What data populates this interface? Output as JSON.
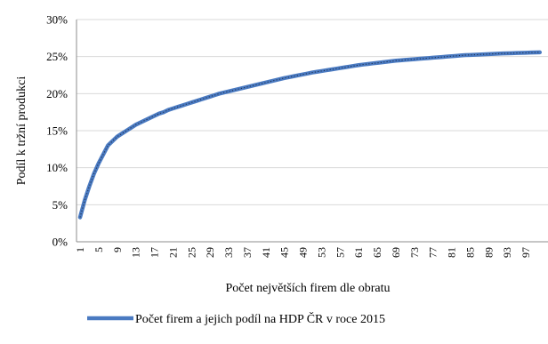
{
  "chart_data": {
    "type": "line",
    "title": "",
    "xlabel": "Počet největších firem dle obratu",
    "ylabel": "Podíl k tržní produkci",
    "ylim": [
      0,
      30
    ],
    "yticks": [
      "0%",
      "5%",
      "10%",
      "15%",
      "20%",
      "25%",
      "30%"
    ],
    "yticks_values": [
      0,
      5,
      10,
      15,
      20,
      25,
      30
    ],
    "xlim": [
      1,
      100
    ],
    "xtick_labels": [
      "1",
      "5",
      "9",
      "13",
      "17",
      "21",
      "25",
      "29",
      "33",
      "37",
      "41",
      "45",
      "49",
      "53",
      "57",
      "61",
      "65",
      "69",
      "73",
      "77",
      "81",
      "85",
      "89",
      "93",
      "97"
    ],
    "grid": "horizontal",
    "legend_position": "bottom",
    "color": "#4a7ac1",
    "series": [
      {
        "name": "Počet firem a jejich podíl na HDP ČR v roce 2015",
        "x": [
          1,
          2,
          3,
          4,
          5,
          6,
          7,
          8,
          9,
          10,
          11,
          12,
          13,
          14,
          15,
          16,
          17,
          18,
          19,
          20,
          21,
          22,
          23,
          24,
          25,
          26,
          27,
          28,
          29,
          30,
          31,
          32,
          33,
          34,
          35,
          36,
          37,
          38,
          39,
          40,
          41,
          42,
          43,
          44,
          45,
          46,
          47,
          48,
          49,
          50,
          51,
          52,
          53,
          54,
          55,
          56,
          57,
          58,
          59,
          60,
          61,
          62,
          63,
          64,
          65,
          66,
          67,
          68,
          69,
          70,
          71,
          72,
          73,
          74,
          75,
          76,
          77,
          78,
          79,
          80,
          81,
          82,
          83,
          84,
          85,
          86,
          87,
          88,
          89,
          90,
          91,
          92,
          93,
          94,
          95,
          96,
          97,
          98,
          99,
          100
        ],
        "values": [
          3.3,
          5.6,
          7.5,
          9.2,
          10.6,
          11.8,
          13.0,
          13.6,
          14.2,
          14.6,
          15.0,
          15.4,
          15.8,
          16.1,
          16.4,
          16.7,
          17.0,
          17.3,
          17.5,
          17.8,
          18.0,
          18.2,
          18.4,
          18.6,
          18.8,
          19.0,
          19.2,
          19.4,
          19.6,
          19.8,
          20.0,
          20.15,
          20.3,
          20.45,
          20.6,
          20.75,
          20.9,
          21.05,
          21.2,
          21.35,
          21.5,
          21.65,
          21.8,
          21.95,
          22.1,
          22.22,
          22.35,
          22.48,
          22.6,
          22.72,
          22.85,
          22.95,
          23.05,
          23.15,
          23.25,
          23.35,
          23.45,
          23.55,
          23.65,
          23.75,
          23.85,
          23.93,
          24.0,
          24.08,
          24.15,
          24.22,
          24.3,
          24.37,
          24.45,
          24.5,
          24.55,
          24.6,
          24.65,
          24.7,
          24.75,
          24.8,
          24.85,
          24.9,
          24.95,
          25.0,
          25.05,
          25.1,
          25.15,
          25.2,
          25.22,
          25.25,
          25.28,
          25.31,
          25.34,
          25.37,
          25.4,
          25.42,
          25.44,
          25.46,
          25.48,
          25.5,
          25.52,
          25.54,
          25.56,
          25.58
        ]
      }
    ]
  }
}
